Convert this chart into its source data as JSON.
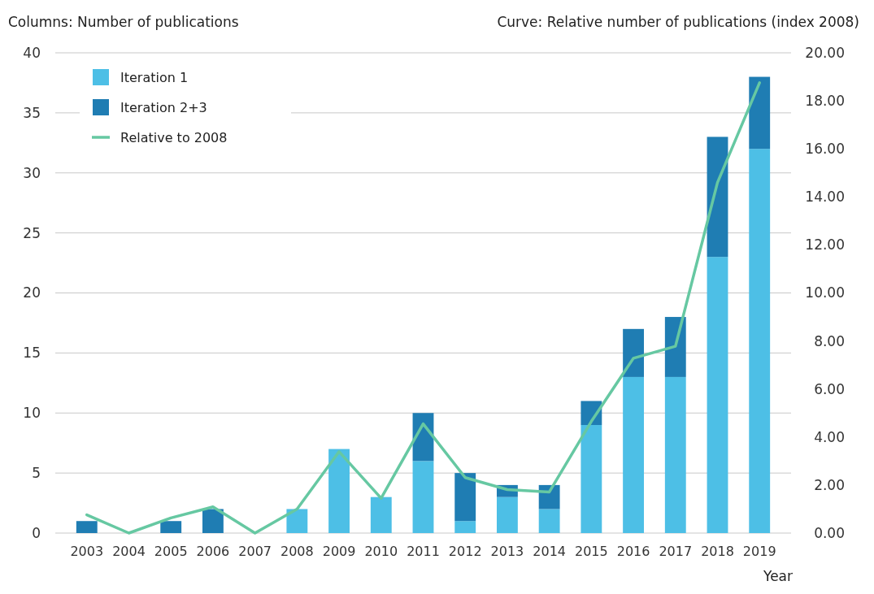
{
  "chart_data": {
    "type": "bar",
    "stacked": true,
    "ylabel": "Columns: Number of publications",
    "y2label": "Curve: Relative number of publications (index 2008)",
    "xlabel": "Year",
    "categories": [
      "2003",
      "2004",
      "2005",
      "2006",
      "2007",
      "2008",
      "2009",
      "2010",
      "2011",
      "2012",
      "2013",
      "2014",
      "2015",
      "2016",
      "2017",
      "2018",
      "2019"
    ],
    "series": [
      {
        "name": "Iteration 1",
        "color": "#4dbfe6",
        "values": [
          0,
          0,
          0,
          0,
          0,
          2,
          7,
          3,
          6,
          1,
          3,
          2,
          9,
          13,
          13,
          23,
          32
        ]
      },
      {
        "name": "Iteration 2+3",
        "color": "#1f7db3",
        "values": [
          1,
          0,
          1,
          2,
          0,
          0,
          0,
          0,
          4,
          4,
          1,
          2,
          2,
          4,
          5,
          10,
          6
        ]
      },
      {
        "name": "Relative to 2008",
        "type": "line",
        "axis": "y2",
        "color": "#66c8a2",
        "values": [
          0.76,
          0,
          0.63,
          1.09,
          0,
          1.0,
          3.39,
          1.45,
          4.55,
          2.31,
          1.81,
          1.71,
          4.65,
          7.28,
          7.78,
          14.6,
          18.75
        ]
      }
    ],
    "ylim": [
      0,
      40
    ],
    "yticks": [
      0,
      5,
      10,
      15,
      20,
      25,
      30,
      35,
      40
    ],
    "y2lim": [
      0,
      20
    ],
    "y2ticks": [
      {
        "value": 0,
        "label": "0.00"
      },
      {
        "value": 2,
        "label": "2.00"
      },
      {
        "value": 4,
        "label": "4.00"
      },
      {
        "value": 6,
        "label": "6.00"
      },
      {
        "value": 8,
        "label": "8.00"
      },
      {
        "value": 10,
        "label": "10.00"
      },
      {
        "value": 12,
        "label": "12.00"
      },
      {
        "value": 14,
        "label": "14.00"
      },
      {
        "value": 16,
        "label": "16.00"
      },
      {
        "value": 18,
        "label": "18.00"
      },
      {
        "value": 20,
        "label": "20.00"
      }
    ],
    "grid": "y",
    "legend": "top left",
    "marker": "none",
    "line_style": "solid"
  }
}
